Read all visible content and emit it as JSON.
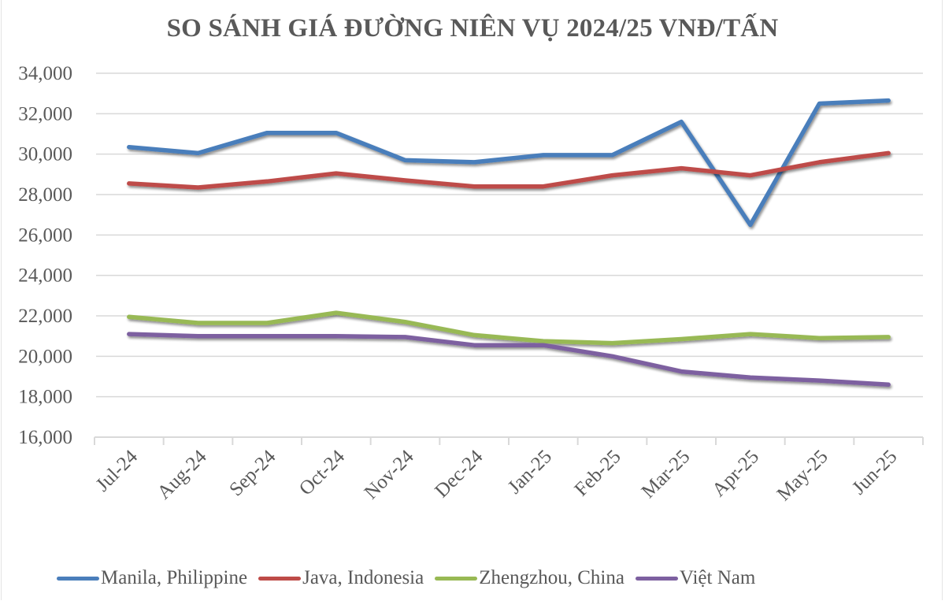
{
  "chart_data": {
    "type": "line",
    "title": "SO SÁNH GIÁ ĐƯỜNG NIÊN VỤ 2024/25 VNĐ/TẤN",
    "xlabel": "",
    "ylabel": "",
    "ylim": [
      16000,
      34000
    ],
    "ytick_step": 2000,
    "ytick_labels": [
      "16,000",
      "18,000",
      "20,000",
      "22,000",
      "24,000",
      "26,000",
      "28,000",
      "30,000",
      "32,000",
      "34,000"
    ],
    "grid": true,
    "legend_position": "bottom",
    "categories": [
      "Jul-24",
      "Aug-24",
      "Sep-24",
      "Oct-24",
      "Nov-24",
      "Dec-24",
      "Jan-25",
      "Feb-25",
      "Mar-25",
      "Apr-25",
      "May-25",
      "Jun-25"
    ],
    "series": [
      {
        "name": "Manila, Philippine",
        "color": "#4a7ebb",
        "values": [
          30350,
          30050,
          31050,
          31050,
          29700,
          29600,
          29950,
          29950,
          31600,
          26500,
          32500,
          32650
        ]
      },
      {
        "name": "Java, Indonesia",
        "color": "#be4b48",
        "values": [
          28550,
          28350,
          28650,
          29050,
          28700,
          28400,
          28400,
          28950,
          29300,
          28950,
          29600,
          30050
        ]
      },
      {
        "name": "Zhengzhou, China",
        "color": "#98b954",
        "values": [
          21950,
          21650,
          21650,
          22150,
          21700,
          21050,
          20750,
          20650,
          20850,
          21100,
          20900,
          20950
        ]
      },
      {
        "name": "Việt Nam",
        "color": "#7d60a0",
        "values": [
          21100,
          21000,
          21000,
          21000,
          20950,
          20550,
          20550,
          20000,
          19250,
          18950,
          18800,
          18600
        ]
      }
    ]
  },
  "legend": {
    "items": [
      {
        "label": "Manila, Philippine",
        "color": "#4a7ebb"
      },
      {
        "label": "Java, Indonesia",
        "color": "#be4b48"
      },
      {
        "label": "Zhengzhou, China",
        "color": "#98b954"
      },
      {
        "label": "Việt Nam",
        "color": "#7d60a0"
      }
    ]
  }
}
